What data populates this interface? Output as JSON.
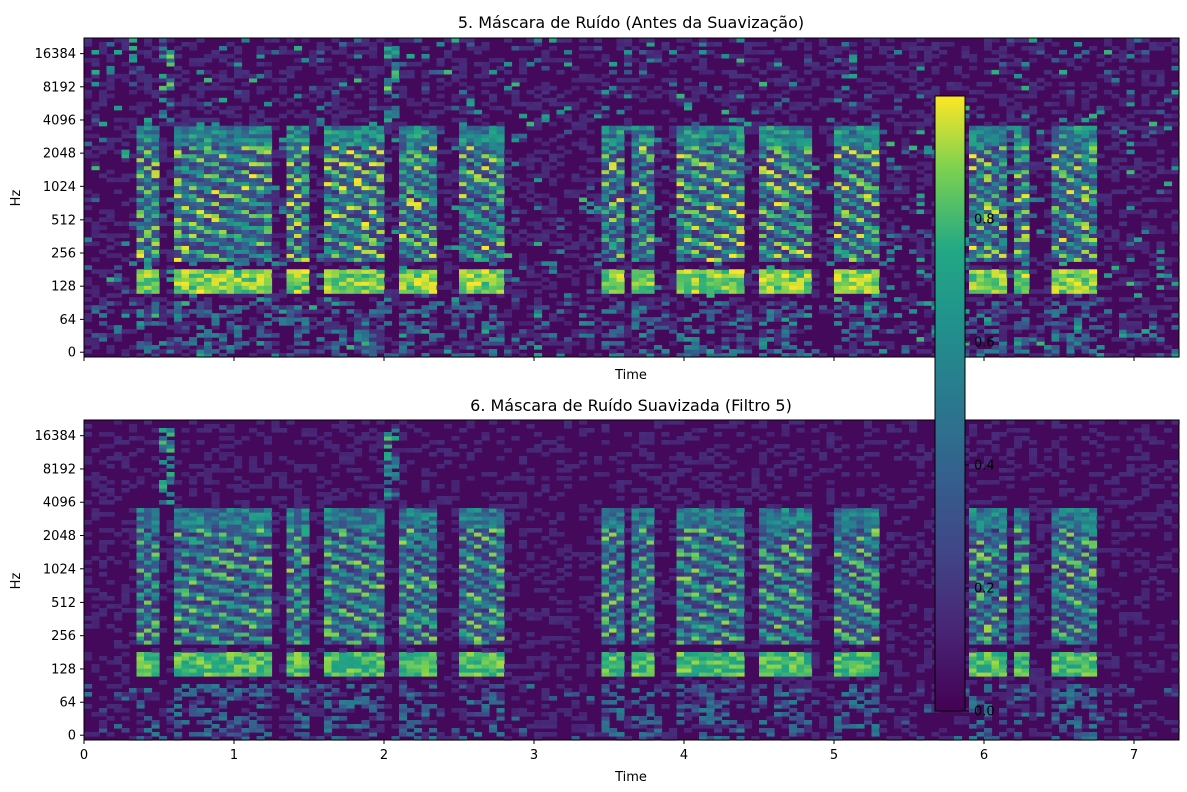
{
  "chart_data": [
    {
      "type": "heatmap",
      "title": "5. Máscara de Ruído (Antes da Suavização)",
      "xlabel": "Time",
      "ylabel": "Hz",
      "xlim": [
        0,
        7.3
      ],
      "x_ticks": [
        0,
        1,
        2,
        3,
        4,
        5,
        6,
        7
      ],
      "x_tick_labels_shown": false,
      "y_ticks": [
        "0",
        "64",
        "128",
        "256",
        "512",
        "1024",
        "2048",
        "4096",
        "8192",
        "16384"
      ],
      "yscale": "log (librosa)",
      "colormap": "viridis",
      "value_range": [
        0,
        1
      ],
      "voiced_segments_s": [
        [
          0.33,
          0.5
        ],
        [
          0.62,
          1.2
        ],
        [
          1.07,
          1.23
        ],
        [
          1.33,
          1.48
        ],
        [
          1.58,
          1.98
        ],
        [
          2.08,
          2.36
        ],
        [
          2.5,
          2.8
        ],
        [
          3.45,
          3.6
        ],
        [
          3.67,
          3.82
        ],
        [
          3.95,
          4.4
        ],
        [
          4.5,
          4.84
        ],
        [
          5.0,
          5.3
        ],
        [
          5.92,
          6.15
        ],
        [
          6.2,
          6.3
        ],
        [
          6.45,
          6.75
        ]
      ],
      "noise_band_high_s": [
        [
          0.48,
          0.62
        ],
        [
          1.98,
          2.1
        ]
      ]
    },
    {
      "type": "heatmap",
      "title": "6. Máscara de Ruído Suavizada (Filtro 5)",
      "xlabel": "Time",
      "ylabel": "Hz",
      "xlim": [
        0,
        7.3
      ],
      "x_ticks": [
        0,
        1,
        2,
        3,
        4,
        5,
        6,
        7
      ],
      "x_tick_labels": [
        "0",
        "1",
        "2",
        "3",
        "4",
        "5",
        "6",
        "7"
      ],
      "y_ticks": [
        "0",
        "64",
        "128",
        "256",
        "512",
        "1024",
        "2048",
        "4096",
        "8192",
        "16384"
      ],
      "yscale": "log (librosa)",
      "colormap": "viridis",
      "value_range": [
        0,
        1
      ],
      "voiced_segments_s": [
        [
          0.33,
          0.5
        ],
        [
          0.62,
          1.2
        ],
        [
          1.07,
          1.23
        ],
        [
          1.33,
          1.48
        ],
        [
          1.58,
          1.98
        ],
        [
          2.08,
          2.36
        ],
        [
          2.5,
          2.8
        ],
        [
          3.45,
          3.6
        ],
        [
          3.67,
          3.82
        ],
        [
          3.95,
          4.4
        ],
        [
          4.5,
          4.84
        ],
        [
          5.0,
          5.3
        ],
        [
          5.92,
          6.15
        ],
        [
          6.2,
          6.3
        ],
        [
          6.45,
          6.75
        ]
      ],
      "noise_band_high_s": [
        [
          0.48,
          0.62
        ],
        [
          1.98,
          2.1
        ]
      ]
    }
  ],
  "colorbar": {
    "ticks": [
      0.0,
      0.2,
      0.4,
      0.6,
      0.8
    ],
    "tick_labels": [
      "0.0",
      "0.2",
      "0.4",
      "0.6",
      "0.8"
    ],
    "range": [
      0,
      1
    ],
    "colormap": "viridis"
  },
  "colors": {
    "viridis_low": "#440154",
    "viridis_mid": "#21918c",
    "viridis_high": "#fde725"
  }
}
